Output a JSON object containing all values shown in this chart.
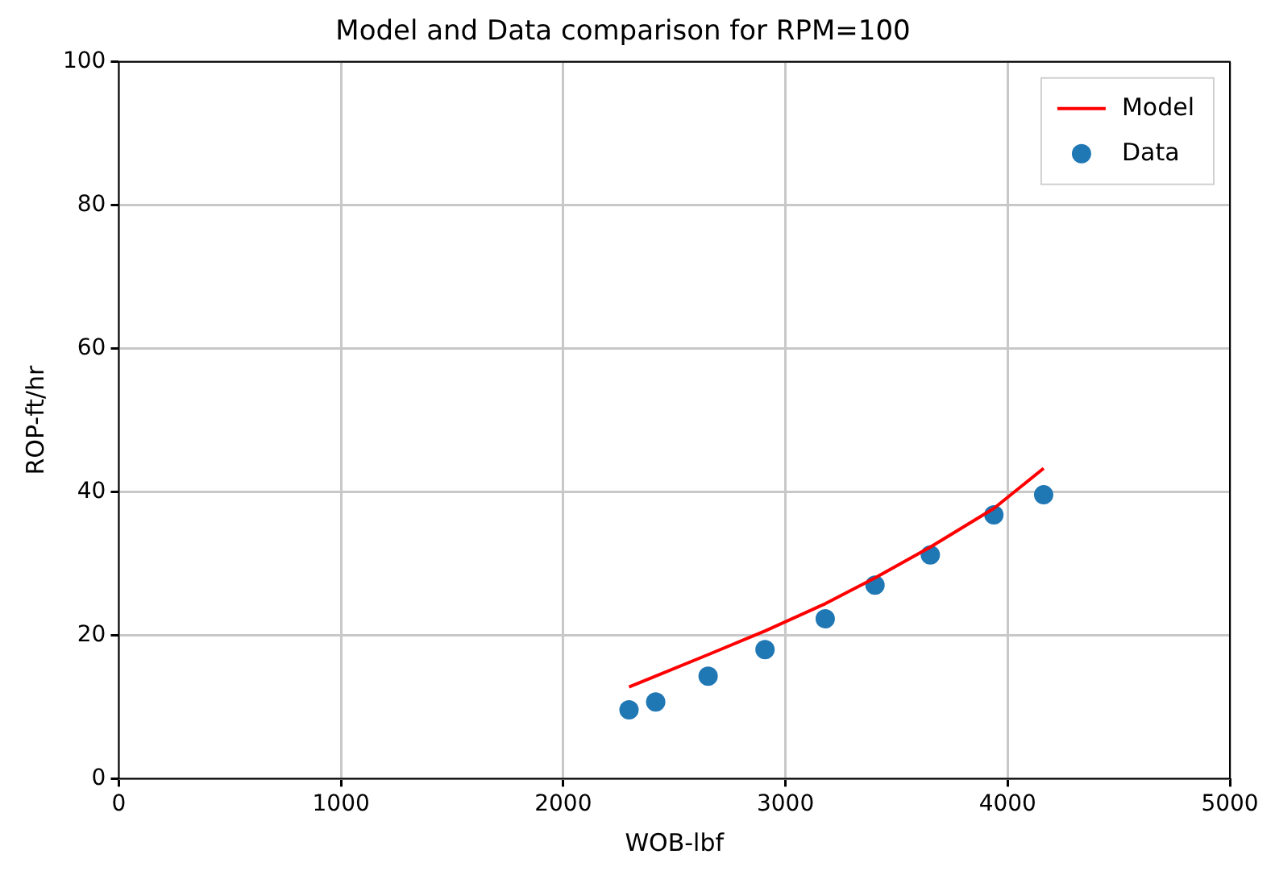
{
  "chart_data": {
    "type": "scatter",
    "title": "Model and Data comparison for RPM=100",
    "xlabel": "WOB-lbf",
    "ylabel": "ROP-ft/hr",
    "xlim": [
      0,
      5000
    ],
    "xticks": [
      0,
      1000,
      2000,
      3000,
      4000,
      5000
    ],
    "ylim": [
      0,
      100
    ],
    "yticks": [
      0,
      20,
      40,
      60,
      80,
      100
    ],
    "grid": true,
    "legend": "top right",
    "series": [
      {
        "name": "Model",
        "type": "line",
        "color": "#ff0000",
        "marker": "none",
        "x": [
          2296,
          2416,
          2652,
          2908,
          3179,
          3403,
          3652,
          3938,
          4162
        ],
        "values": [
          12.8,
          14.3,
          17.3,
          20.6,
          24.4,
          28,
          32.3,
          37.7,
          43.3
        ]
      },
      {
        "name": "Data",
        "color": "#1f77b4",
        "marker": "circle",
        "x": [
          2296,
          2416,
          2652,
          2908,
          3179,
          3403,
          3652,
          3938,
          4162
        ],
        "values": [
          9.6,
          10.7,
          14.3,
          18,
          22.3,
          27,
          31.2,
          36.8,
          39.6
        ]
      }
    ]
  }
}
